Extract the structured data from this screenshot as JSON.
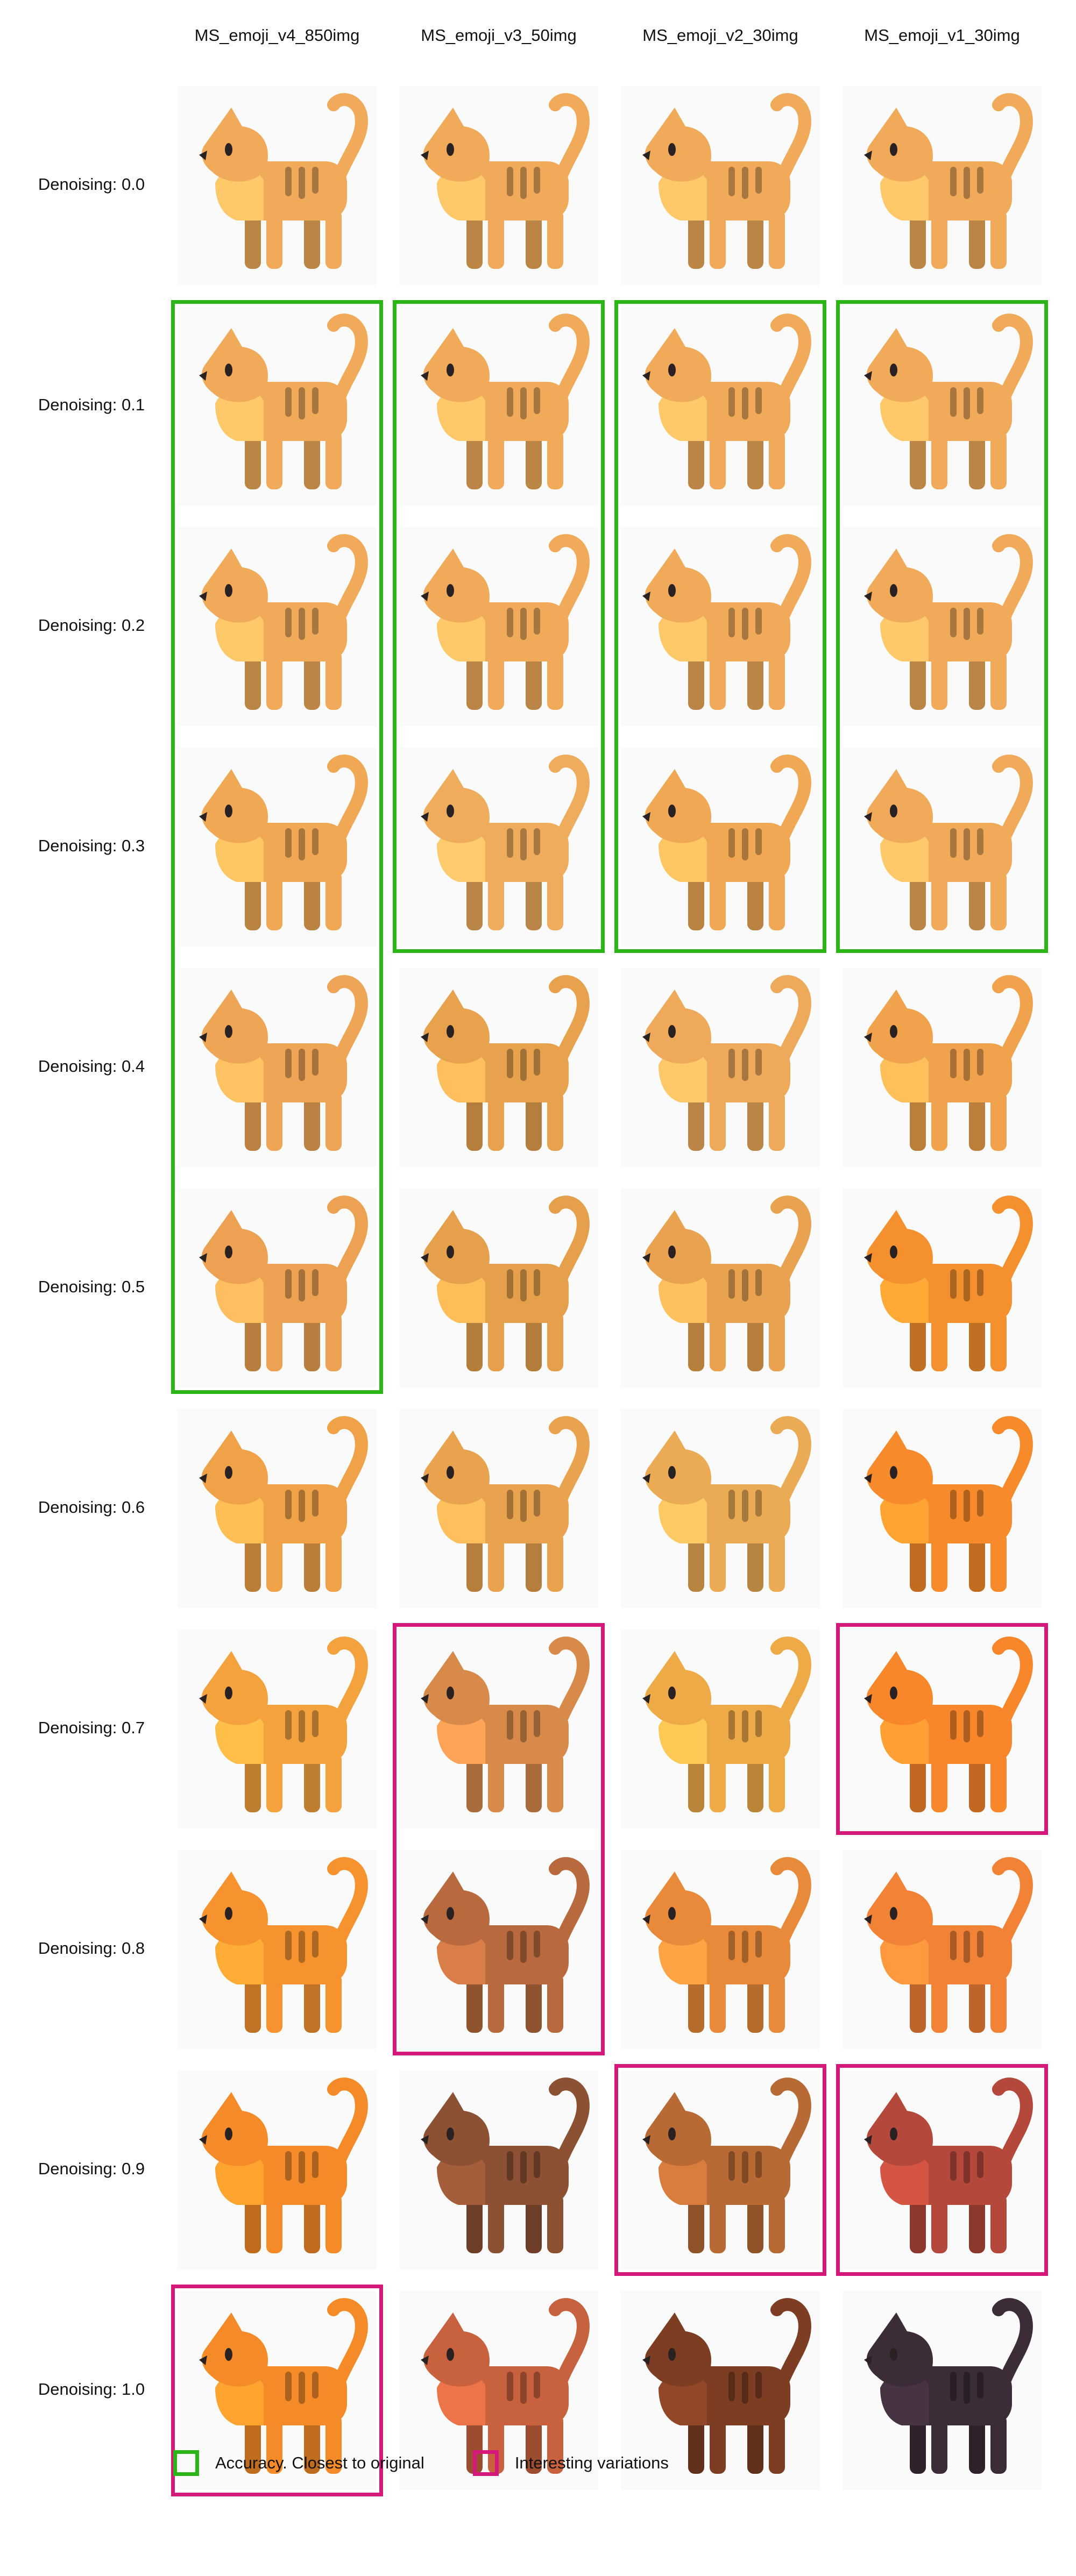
{
  "columns": [
    {
      "label": "MS_emoji_v4_850img"
    },
    {
      "label": "MS_emoji_v3_50img"
    },
    {
      "label": "MS_emoji_v2_30img"
    },
    {
      "label": "MS_emoji_v1_30img"
    }
  ],
  "rows": [
    {
      "label": "Denoising: 0.0"
    },
    {
      "label": "Denoising: 0.1"
    },
    {
      "label": "Denoising: 0.2"
    },
    {
      "label": "Denoising: 0.3"
    },
    {
      "label": "Denoising: 0.4"
    },
    {
      "label": "Denoising: 0.5"
    },
    {
      "label": "Denoising: 0.6"
    },
    {
      "label": "Denoising: 0.7"
    },
    {
      "label": "Denoising: 0.8"
    },
    {
      "label": "Denoising: 0.9"
    },
    {
      "label": "Denoising: 1.0"
    }
  ],
  "legend": {
    "accuracy_label": "Accuracy. Closest to original",
    "interesting_label": "Interesting variations"
  },
  "colors": {
    "accuracy": "#2bb516",
    "interesting": "#d4197a",
    "cat_base": "#f0a855",
    "cat_light": "#f8c98a",
    "cat_orange": "#f58a2e",
    "cat_brown": "#a0522d",
    "stripe": "#c97a2e"
  },
  "highlights": [
    {
      "type": "accuracy",
      "column": 0,
      "row_start": 1,
      "row_end": 5
    },
    {
      "type": "accuracy",
      "column": 1,
      "row_start": 1,
      "row_end": 3
    },
    {
      "type": "accuracy",
      "column": 2,
      "row_start": 1,
      "row_end": 3
    },
    {
      "type": "accuracy",
      "column": 3,
      "row_start": 1,
      "row_end": 3
    },
    {
      "type": "interesting",
      "column": 1,
      "row_start": 7,
      "row_end": 8
    },
    {
      "type": "interesting",
      "column": 3,
      "row_start": 7,
      "row_end": 7
    },
    {
      "type": "interesting",
      "column": 2,
      "row_start": 9,
      "row_end": 9
    },
    {
      "type": "interesting",
      "column": 3,
      "row_start": 9,
      "row_end": 9
    },
    {
      "type": "interesting",
      "column": 0,
      "row_start": 10,
      "row_end": 10
    }
  ],
  "images": {
    "subject": "cat-emoji",
    "palette": [
      [
        "#f0aa5a",
        "#f0aa5a",
        "#f0aa5a",
        "#f0aa5a"
      ],
      [
        "#f0aa5a",
        "#f0aa5a",
        "#f0aa5a",
        "#f0aa5a"
      ],
      [
        "#f0aa5a",
        "#f0aa5a",
        "#f0aa5a",
        "#f0aa5a"
      ],
      [
        "#f0a855",
        "#eeac5c",
        "#f0a855",
        "#f0aa5a"
      ],
      [
        "#eea555",
        "#e8a24e",
        "#eeaa5a",
        "#f1a24c"
      ],
      [
        "#eca252",
        "#e6a04c",
        "#e9a350",
        "#f5902e"
      ],
      [
        "#f0a248",
        "#e9a24e",
        "#ebab55",
        "#f78a2a"
      ],
      [
        "#f4a23e",
        "#d88a4a",
        "#efaa48",
        "#f8872c"
      ],
      [
        "#f6932e",
        "#b86a3e",
        "#e88a3a",
        "#f28236"
      ],
      [
        "#f58b28",
        "#8c5033",
        "#b86a35",
        "#b4483a"
      ],
      [
        "#f58b28",
        "#c8623e",
        "#7c3d22",
        "#3c2c38"
      ]
    ]
  }
}
